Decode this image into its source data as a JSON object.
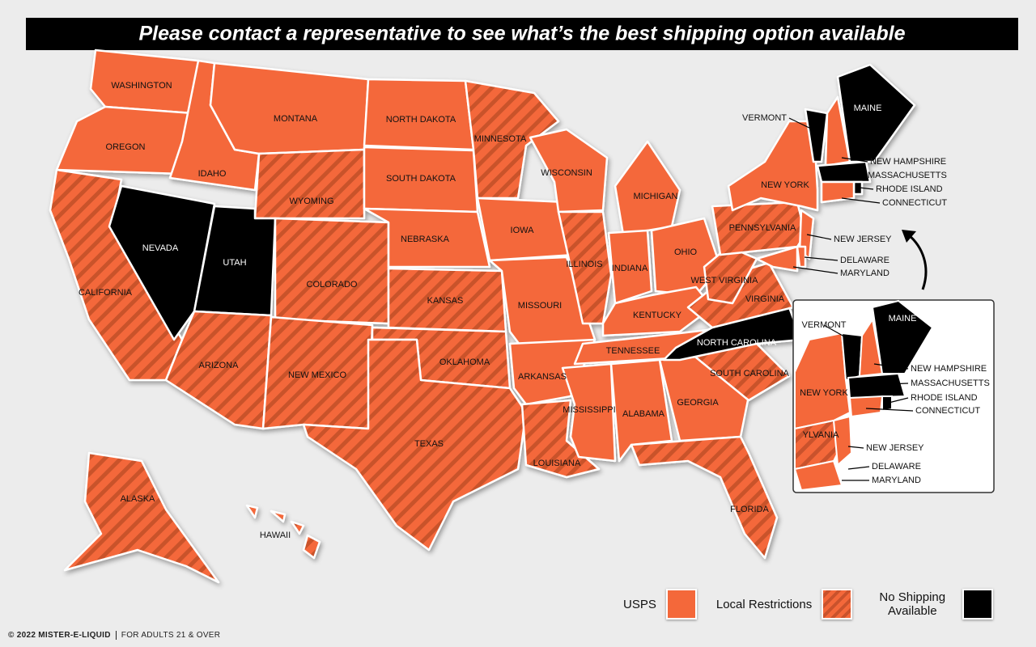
{
  "header": {
    "title": "Please contact a representative to see what’s the best shipping option available"
  },
  "legend": [
    {
      "label": "USPS",
      "color": "#f4683a",
      "hatch": false
    },
    {
      "label": "Local Restrictions",
      "color": "#f4683a",
      "hatch": true
    },
    {
      "label": "No Shipping Available",
      "color": "#000000",
      "hatch": false
    }
  ],
  "states": [
    {
      "name": "WASHINGTON",
      "category": 0
    },
    {
      "name": "OREGON",
      "category": 0
    },
    {
      "name": "CALIFORNIA",
      "category": 1
    },
    {
      "name": "NEVADA",
      "category": 2
    },
    {
      "name": "IDAHO",
      "category": 0
    },
    {
      "name": "MONTANA",
      "category": 0
    },
    {
      "name": "WYOMING",
      "category": 1
    },
    {
      "name": "UTAH",
      "category": 2
    },
    {
      "name": "COLORADO",
      "category": 1
    },
    {
      "name": "ARIZONA",
      "category": 1
    },
    {
      "name": "NEW MEXICO",
      "category": 1
    },
    {
      "name": "NORTH DAKOTA",
      "category": 0
    },
    {
      "name": "SOUTH DAKOTA",
      "category": 0
    },
    {
      "name": "NEBRASKA",
      "category": 0
    },
    {
      "name": "KANSAS",
      "category": 1
    },
    {
      "name": "OKLAHOMA",
      "category": 1
    },
    {
      "name": "TEXAS",
      "category": 1
    },
    {
      "name": "MINNESOTA",
      "category": 1
    },
    {
      "name": "IOWA",
      "category": 0
    },
    {
      "name": "MISSOURI",
      "category": 0
    },
    {
      "name": "ARKANSAS",
      "category": 0
    },
    {
      "name": "LOUISIANA",
      "category": 1
    },
    {
      "name": "WISCONSIN",
      "category": 0
    },
    {
      "name": "ILLINOIS",
      "category": 1
    },
    {
      "name": "MICHIGAN",
      "category": 0
    },
    {
      "name": "INDIANA",
      "category": 0
    },
    {
      "name": "OHIO",
      "category": 0
    },
    {
      "name": "KENTUCKY",
      "category": 0
    },
    {
      "name": "TENNESSEE",
      "category": 0
    },
    {
      "name": "MISSISSIPPI",
      "category": 0
    },
    {
      "name": "ALABAMA",
      "category": 0
    },
    {
      "name": "GEORGIA",
      "category": 0
    },
    {
      "name": "FLORIDA",
      "category": 1
    },
    {
      "name": "SOUTH CAROLINA",
      "category": 1
    },
    {
      "name": "NORTH CAROLINA",
      "category": 2
    },
    {
      "name": "VIRGINIA",
      "category": 1
    },
    {
      "name": "WEST VIRGINIA",
      "category": 1
    },
    {
      "name": "PENNSYLVANIA",
      "category": 1
    },
    {
      "name": "NEW YORK",
      "category": 0
    },
    {
      "name": "NEW JERSEY",
      "category": 0
    },
    {
      "name": "DELAWARE",
      "category": 0
    },
    {
      "name": "MARYLAND",
      "category": 0
    },
    {
      "name": "VERMONT",
      "category": 2
    },
    {
      "name": "NEW HAMPSHIRE",
      "category": 0
    },
    {
      "name": "MAINE",
      "category": 2
    },
    {
      "name": "MASSACHUSETTS",
      "category": 2
    },
    {
      "name": "RHODE ISLAND",
      "category": 2
    },
    {
      "name": "CONNECTICUT",
      "category": 0
    },
    {
      "name": "ALASKA",
      "category": 1
    },
    {
      "name": "HAWAII",
      "category": 1
    }
  ],
  "inset": {
    "labels": [
      "VERMONT",
      "MAINE",
      "NEW HAMPSHIRE",
      "MASSACHUSETTS",
      "NEW YORK",
      "RHODE ISLAND",
      "CONNECTICUT",
      "YLVANIA",
      "NEW JERSEY",
      "DELAWARE",
      "MARYLAND"
    ]
  },
  "footer": {
    "brand": "© 2022 MISTER-E-LIQUID",
    "note": "FOR ADULTS 21 & OVER"
  }
}
